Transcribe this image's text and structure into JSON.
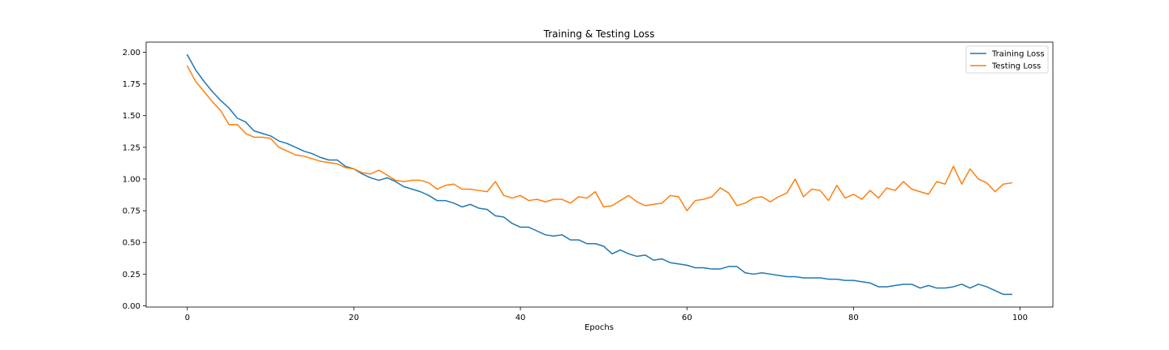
{
  "chart_data": {
    "type": "line",
    "title": "Training & Testing Loss",
    "xlabel": "Epochs",
    "ylabel": "",
    "xlim": [
      -4.95,
      103.95
    ],
    "ylim": [
      -0.01,
      2.08
    ],
    "xticks": [
      0,
      20,
      40,
      60,
      80,
      100
    ],
    "yticks": [
      0.0,
      0.25,
      0.5,
      0.75,
      1.0,
      1.25,
      1.5,
      1.75,
      2.0
    ],
    "xtick_labels": [
      "0",
      "20",
      "40",
      "60",
      "80",
      "100"
    ],
    "ytick_labels": [
      "0.00",
      "0.25",
      "0.50",
      "0.75",
      "1.00",
      "1.25",
      "1.50",
      "1.75",
      "2.00"
    ],
    "grid": false,
    "legend_position": "top-right",
    "x": [
      0,
      1,
      2,
      3,
      4,
      5,
      6,
      7,
      8,
      9,
      10,
      11,
      12,
      13,
      14,
      15,
      16,
      17,
      18,
      19,
      20,
      21,
      22,
      23,
      24,
      25,
      26,
      27,
      28,
      29,
      30,
      31,
      32,
      33,
      34,
      35,
      36,
      37,
      38,
      39,
      40,
      41,
      42,
      43,
      44,
      45,
      46,
      47,
      48,
      49,
      50,
      51,
      52,
      53,
      54,
      55,
      56,
      57,
      58,
      59,
      60,
      61,
      62,
      63,
      64,
      65,
      66,
      67,
      68,
      69,
      70,
      71,
      72,
      73,
      74,
      75,
      76,
      77,
      78,
      79,
      80,
      81,
      82,
      83,
      84,
      85,
      86,
      87,
      88,
      89,
      90,
      91,
      92,
      93,
      94,
      95,
      96,
      97,
      98,
      99
    ],
    "series": [
      {
        "name": "Training Loss",
        "color": "#1f77b4",
        "values": [
          1.98,
          1.86,
          1.77,
          1.69,
          1.62,
          1.56,
          1.48,
          1.45,
          1.38,
          1.36,
          1.34,
          1.3,
          1.28,
          1.25,
          1.22,
          1.2,
          1.17,
          1.15,
          1.15,
          1.1,
          1.08,
          1.04,
          1.01,
          0.99,
          1.01,
          0.98,
          0.94,
          0.92,
          0.9,
          0.87,
          0.83,
          0.83,
          0.81,
          0.78,
          0.8,
          0.77,
          0.76,
          0.71,
          0.7,
          0.65,
          0.62,
          0.62,
          0.59,
          0.56,
          0.55,
          0.56,
          0.52,
          0.52,
          0.49,
          0.49,
          0.47,
          0.41,
          0.44,
          0.41,
          0.39,
          0.4,
          0.36,
          0.37,
          0.34,
          0.33,
          0.32,
          0.3,
          0.3,
          0.29,
          0.29,
          0.31,
          0.31,
          0.26,
          0.25,
          0.26,
          0.25,
          0.24,
          0.23,
          0.23,
          0.22,
          0.22,
          0.22,
          0.21,
          0.21,
          0.2,
          0.2,
          0.19,
          0.18,
          0.15,
          0.15,
          0.16,
          0.17,
          0.17,
          0.14,
          0.16,
          0.14,
          0.14,
          0.15,
          0.17,
          0.14,
          0.17,
          0.15,
          0.12,
          0.09,
          0.09
        ]
      },
      {
        "name": "Testing Loss",
        "color": "#ff7f0e",
        "values": [
          1.89,
          1.77,
          1.69,
          1.61,
          1.54,
          1.43,
          1.43,
          1.36,
          1.33,
          1.33,
          1.32,
          1.25,
          1.22,
          1.19,
          1.18,
          1.16,
          1.14,
          1.13,
          1.12,
          1.09,
          1.08,
          1.05,
          1.04,
          1.07,
          1.03,
          0.99,
          0.98,
          0.99,
          0.99,
          0.97,
          0.92,
          0.95,
          0.96,
          0.92,
          0.92,
          0.91,
          0.9,
          0.98,
          0.87,
          0.85,
          0.87,
          0.83,
          0.84,
          0.82,
          0.84,
          0.84,
          0.81,
          0.86,
          0.85,
          0.9,
          0.78,
          0.79,
          0.83,
          0.87,
          0.82,
          0.79,
          0.8,
          0.81,
          0.87,
          0.86,
          0.75,
          0.83,
          0.84,
          0.86,
          0.93,
          0.89,
          0.79,
          0.81,
          0.85,
          0.86,
          0.82,
          0.86,
          0.89,
          1.0,
          0.86,
          0.92,
          0.91,
          0.83,
          0.95,
          0.85,
          0.88,
          0.84,
          0.91,
          0.85,
          0.93,
          0.91,
          0.98,
          0.92,
          0.9,
          0.88,
          0.98,
          0.96,
          1.1,
          0.96,
          1.08,
          1.0,
          0.97,
          0.9,
          0.96,
          0.97
        ]
      }
    ]
  }
}
